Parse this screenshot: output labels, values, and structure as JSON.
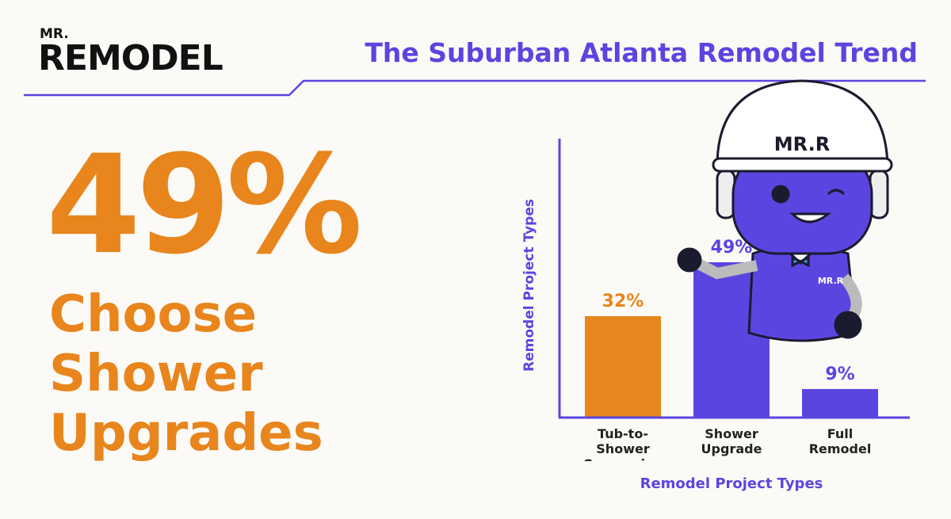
{
  "logo": {
    "small": "MR.",
    "main": "REMODEL"
  },
  "title": "The Suburban Atlanta Remodel Trend",
  "headline": {
    "stat": "49%",
    "lines": [
      "Choose",
      "Shower",
      "Upgrades"
    ]
  },
  "mascot": {
    "helmet": "MR.R",
    "shirt": "MR.R"
  },
  "chart_data": {
    "type": "bar",
    "categories": [
      "Tub-to-Shower Conversion",
      "Shower Upgrade",
      "Full Remodel"
    ],
    "values": [
      32,
      49,
      9
    ],
    "value_labels": [
      "32%",
      "49%",
      "9%"
    ],
    "colors": [
      "#e8851c",
      "#5b45e0",
      "#5b45e0"
    ],
    "ylim": [
      0,
      88
    ],
    "xlabel": "Remodel Project Types",
    "ylabel": "Remodel Project Types"
  }
}
